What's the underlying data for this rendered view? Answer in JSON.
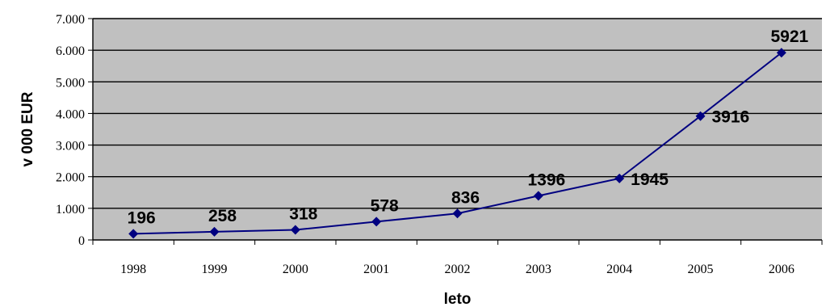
{
  "chart_data": {
    "type": "line",
    "title": "",
    "xlabel": "leto",
    "ylabel": "v 000 EUR",
    "categories": [
      "1998",
      "1999",
      "2000",
      "2001",
      "2002",
      "2003",
      "2004",
      "2005",
      "2006"
    ],
    "values": [
      196,
      258,
      318,
      578,
      836,
      1396,
      1945,
      3916,
      5921
    ],
    "data_labels": [
      "196",
      "258",
      "318",
      "578",
      "836",
      "1396",
      "1945",
      "3916",
      "5921"
    ],
    "ylim": [
      0,
      7000
    ],
    "yticks": [
      0,
      1000,
      2000,
      3000,
      4000,
      5000,
      6000,
      7000
    ],
    "ytick_labels": [
      "0",
      "1.000",
      "2.000",
      "3.000",
      "4.000",
      "5.000",
      "6.000",
      "7.000"
    ],
    "grid": true,
    "legend": "none",
    "colors": {
      "plot_background": "#c0c0c0",
      "line": "#000080",
      "gridline": "#000000"
    }
  }
}
